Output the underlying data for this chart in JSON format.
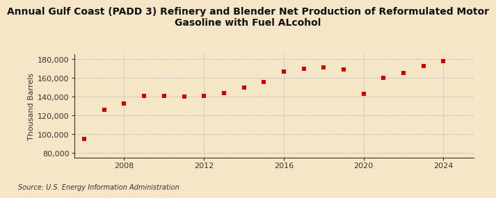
{
  "title": "Annual Gulf Coast (PADD 3) Refinery and Blender Net Production of Reformulated Motor\nGasoline with Fuel ALcohol",
  "ylabel": "Thousand Barrels",
  "source": "Source: U.S. Energy Information Administration",
  "background_color": "#f5e6c8",
  "plot_background_color": "#f5e6c8",
  "marker_color": "#cc0000",
  "grid_color": "#bbbbbb",
  "spine_color": "#333333",
  "years": [
    2006,
    2007,
    2008,
    2009,
    2010,
    2011,
    2012,
    2013,
    2014,
    2015,
    2016,
    2017,
    2018,
    2019,
    2020,
    2021,
    2022,
    2023,
    2024
  ],
  "values": [
    95000,
    126000,
    133000,
    141000,
    141000,
    140000,
    141000,
    144000,
    150000,
    156000,
    167000,
    170000,
    171000,
    169000,
    143000,
    160000,
    165000,
    173000,
    178000
  ],
  "ylim": [
    75000,
    185000
  ],
  "yticks": [
    80000,
    100000,
    120000,
    140000,
    160000,
    180000
  ],
  "xticks": [
    2008,
    2012,
    2016,
    2020,
    2024
  ],
  "title_fontsize": 10,
  "ylabel_fontsize": 8,
  "tick_fontsize": 8,
  "source_fontsize": 7
}
